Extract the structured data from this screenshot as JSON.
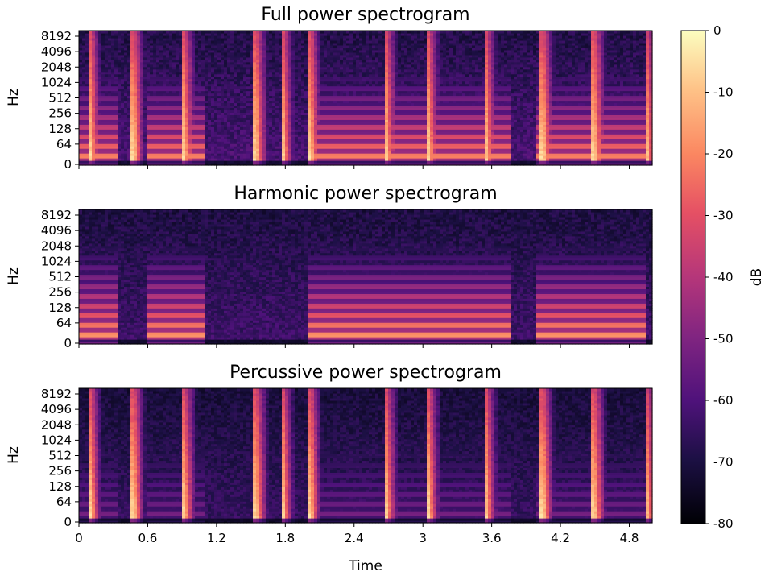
{
  "chart_data": [
    {
      "type": "heatmap",
      "title": "Full power spectrogram",
      "xlabel": "",
      "ylabel": "Hz",
      "x_ticks": [
        "0",
        "0.6",
        "1.2",
        "1.8",
        "2.4",
        "3",
        "3.6",
        "4.2",
        "4.8"
      ],
      "y_ticks": [
        "0",
        "64",
        "128",
        "256",
        "512",
        "1024",
        "2048",
        "4096",
        "8192"
      ],
      "x_range": [
        0,
        5.0
      ],
      "y_scale": "log (symlog)",
      "components": "full",
      "notes": "mixed harmonic bands plus vertical percussive onsets"
    },
    {
      "type": "heatmap",
      "title": "Harmonic power spectrogram",
      "xlabel": "",
      "ylabel": "Hz",
      "x_ticks": [
        "0",
        "0.6",
        "1.2",
        "1.8",
        "2.4",
        "3",
        "3.6",
        "4.2",
        "4.8"
      ],
      "y_ticks": [
        "0",
        "64",
        "128",
        "256",
        "512",
        "1024",
        "2048",
        "4096",
        "8192"
      ],
      "x_range": [
        0,
        5.0
      ],
      "y_scale": "log (symlog)",
      "components": "harmonic"
    },
    {
      "type": "heatmap",
      "title": "Percussive power spectrogram",
      "xlabel": "Time",
      "ylabel": "Hz",
      "x_ticks": [
        "0",
        "0.6",
        "1.2",
        "1.8",
        "2.4",
        "3",
        "3.6",
        "4.2",
        "4.8"
      ],
      "y_ticks": [
        "0",
        "64",
        "128",
        "256",
        "512",
        "1024",
        "2048",
        "4096",
        "8192"
      ],
      "x_range": [
        0,
        5.0
      ],
      "y_scale": "log (symlog)",
      "components": "percussive"
    }
  ],
  "colorbar": {
    "label": "dB",
    "colormap": "magma",
    "range": [
      -80,
      0
    ],
    "ticks": [
      "0",
      "-10",
      "-20",
      "-30",
      "-40",
      "-50",
      "-60",
      "-70",
      "-80"
    ]
  },
  "notes": {
    "onsets_s": [
      0.1,
      0.48,
      0.92,
      1.55,
      1.78,
      2.02,
      2.68,
      3.05,
      3.55,
      4.05,
      4.5,
      4.95
    ],
    "harmonic_segments_s": [
      [
        0.0,
        0.35
      ],
      [
        0.58,
        1.1
      ],
      [
        2.0,
        2.65
      ],
      [
        2.65,
        3.05
      ],
      [
        3.05,
        3.75
      ],
      [
        4.0,
        4.5
      ],
      [
        4.5,
        4.95
      ]
    ]
  }
}
